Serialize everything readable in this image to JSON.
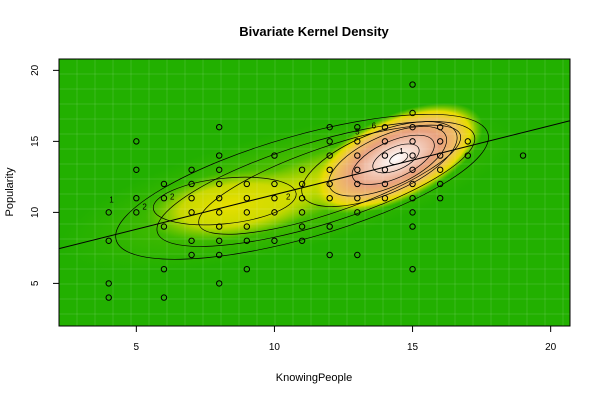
{
  "chart_data": {
    "type": "scatter",
    "title": "Bivariate Kernel Density",
    "xlabel": "KnowingPeople",
    "ylabel": "Popularity",
    "xlim": [
      2.2,
      20.7
    ],
    "ylim": [
      2.0,
      20.8
    ],
    "xticks": [
      5,
      10,
      15,
      20
    ],
    "yticks": [
      5,
      10,
      15,
      20
    ],
    "xtick_labels": [
      "5",
      "10",
      "15",
      "20"
    ],
    "ytick_labels": [
      "5",
      "10",
      "15",
      "20"
    ],
    "density_color_scale": [
      "#22b000",
      "#8bd400",
      "#f0e000",
      "#f2c060",
      "#e9a080",
      "#f5d6cc",
      "#ffffff"
    ],
    "density_mode": {
      "x": 14.4,
      "y": 13.8
    },
    "contour_labels": [
      {
        "text": "1",
        "x": 4.1,
        "y": 10.7
      },
      {
        "text": "2",
        "x": 5.3,
        "y": 10.2
      },
      {
        "text": "2",
        "x": 6.3,
        "y": 10.9
      },
      {
        "text": "2",
        "x": 10.5,
        "y": 10.9
      },
      {
        "text": "5",
        "x": 13.0,
        "y": 15.5
      },
      {
        "text": "6",
        "x": 13.6,
        "y": 15.9
      },
      {
        "text": "1",
        "x": 14.6,
        "y": 14.1
      }
    ],
    "regression_line": {
      "x": [
        2.2,
        20.7
      ],
      "y": [
        7.45,
        16.45
      ]
    },
    "points": [
      {
        "x": 4,
        "y": 4
      },
      {
        "x": 4,
        "y": 5
      },
      {
        "x": 4,
        "y": 8
      },
      {
        "x": 4,
        "y": 10
      },
      {
        "x": 5,
        "y": 10
      },
      {
        "x": 5,
        "y": 11
      },
      {
        "x": 5,
        "y": 13
      },
      {
        "x": 5,
        "y": 15
      },
      {
        "x": 6,
        "y": 4
      },
      {
        "x": 6,
        "y": 6
      },
      {
        "x": 6,
        "y": 9
      },
      {
        "x": 6,
        "y": 11
      },
      {
        "x": 6,
        "y": 12
      },
      {
        "x": 7,
        "y": 7
      },
      {
        "x": 7,
        "y": 8
      },
      {
        "x": 7,
        "y": 10
      },
      {
        "x": 7,
        "y": 11
      },
      {
        "x": 7,
        "y": 12
      },
      {
        "x": 7,
        "y": 13
      },
      {
        "x": 8,
        "y": 5
      },
      {
        "x": 8,
        "y": 7
      },
      {
        "x": 8,
        "y": 8
      },
      {
        "x": 8,
        "y": 9
      },
      {
        "x": 8,
        "y": 10
      },
      {
        "x": 8,
        "y": 11
      },
      {
        "x": 8,
        "y": 12
      },
      {
        "x": 8,
        "y": 13
      },
      {
        "x": 8,
        "y": 14
      },
      {
        "x": 8,
        "y": 16
      },
      {
        "x": 9,
        "y": 6
      },
      {
        "x": 9,
        "y": 8
      },
      {
        "x": 9,
        "y": 9
      },
      {
        "x": 9,
        "y": 10
      },
      {
        "x": 9,
        "y": 11
      },
      {
        "x": 9,
        "y": 12
      },
      {
        "x": 10,
        "y": 8
      },
      {
        "x": 10,
        "y": 10
      },
      {
        "x": 10,
        "y": 11
      },
      {
        "x": 10,
        "y": 12
      },
      {
        "x": 10,
        "y": 14
      },
      {
        "x": 11,
        "y": 8
      },
      {
        "x": 11,
        "y": 9
      },
      {
        "x": 11,
        "y": 10
      },
      {
        "x": 11,
        "y": 11
      },
      {
        "x": 11,
        "y": 12
      },
      {
        "x": 11,
        "y": 13
      },
      {
        "x": 12,
        "y": 7
      },
      {
        "x": 12,
        "y": 9
      },
      {
        "x": 12,
        "y": 11
      },
      {
        "x": 12,
        "y": 12
      },
      {
        "x": 12,
        "y": 13
      },
      {
        "x": 12,
        "y": 14
      },
      {
        "x": 12,
        "y": 15
      },
      {
        "x": 12,
        "y": 16
      },
      {
        "x": 13,
        "y": 7
      },
      {
        "x": 13,
        "y": 10
      },
      {
        "x": 13,
        "y": 11
      },
      {
        "x": 13,
        "y": 12
      },
      {
        "x": 13,
        "y": 13
      },
      {
        "x": 13,
        "y": 14
      },
      {
        "x": 13,
        "y": 15
      },
      {
        "x": 13,
        "y": 16
      },
      {
        "x": 14,
        "y": 11
      },
      {
        "x": 14,
        "y": 12
      },
      {
        "x": 14,
        "y": 13
      },
      {
        "x": 14,
        "y": 14
      },
      {
        "x": 14,
        "y": 15
      },
      {
        "x": 14,
        "y": 16
      },
      {
        "x": 15,
        "y": 6
      },
      {
        "x": 15,
        "y": 9
      },
      {
        "x": 15,
        "y": 10
      },
      {
        "x": 15,
        "y": 11
      },
      {
        "x": 15,
        "y": 12
      },
      {
        "x": 15,
        "y": 13
      },
      {
        "x": 15,
        "y": 14
      },
      {
        "x": 15,
        "y": 15
      },
      {
        "x": 15,
        "y": 16
      },
      {
        "x": 15,
        "y": 17
      },
      {
        "x": 15,
        "y": 19
      },
      {
        "x": 16,
        "y": 11
      },
      {
        "x": 16,
        "y": 12
      },
      {
        "x": 16,
        "y": 13
      },
      {
        "x": 16,
        "y": 14
      },
      {
        "x": 16,
        "y": 15
      },
      {
        "x": 16,
        "y": 16
      },
      {
        "x": 17,
        "y": 14
      },
      {
        "x": 17,
        "y": 15
      },
      {
        "x": 19,
        "y": 14
      }
    ]
  }
}
